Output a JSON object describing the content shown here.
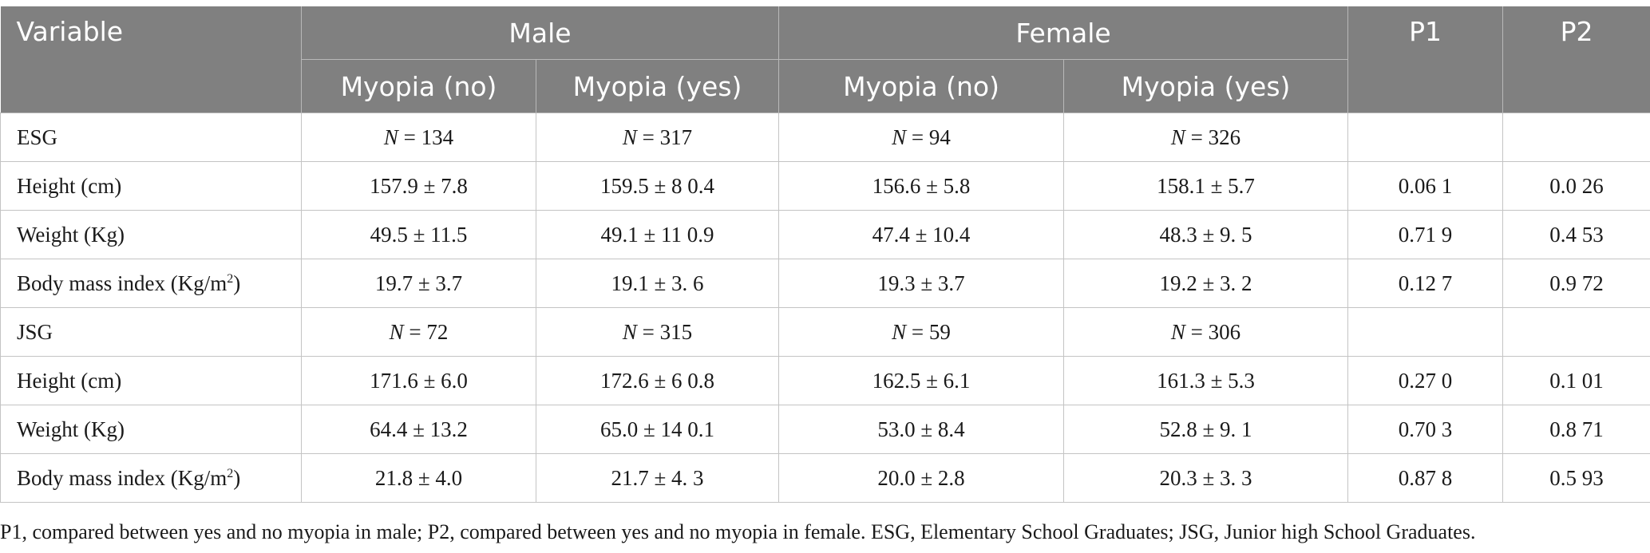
{
  "header": {
    "variable": "Variable",
    "male": "Male",
    "female": "Female",
    "p1": "P1",
    "p2": "P2",
    "sub": [
      "Myopia (no)",
      "Myopia (yes)",
      "Myopia (no)",
      "Myopia (yes)"
    ]
  },
  "rows": [
    {
      "label": "ESG",
      "n": [
        "134",
        "317",
        "94",
        "326"
      ]
    },
    {
      "label": "Height (cm)",
      "cells": [
        "157.9 ± 7.8",
        "159.5 ± 8 0.4",
        "156.6 ± 5.8",
        "158.1 ± 5.7",
        "0.06 1",
        "0.0 26"
      ]
    },
    {
      "label": "Weight (Kg)",
      "cells": [
        "49.5 ± 11.5",
        "49.1 ± 11 0.9",
        "47.4 ± 10.4",
        "48.3 ± 9. 5",
        "0.71 9",
        "0.4 53"
      ]
    },
    {
      "label": "Body mass index (Kg/m",
      "sup": "2",
      "close": ")",
      "cells": [
        "19.7 ± 3.7",
        "19.1 ± 3. 6",
        "19.3 ± 3.7",
        "19.2 ± 3. 2",
        "0.12 7",
        "0.9 72"
      ]
    },
    {
      "label": "JSG",
      "n": [
        "72",
        "315",
        "59",
        "306"
      ]
    },
    {
      "label": "Height (cm)",
      "cells": [
        "171.6 ± 6.0",
        "172.6 ± 6 0.8",
        "162.5 ± 6.1",
        "161.3 ± 5.3",
        "0.27 0",
        "0.1 01"
      ]
    },
    {
      "label": "Weight (Kg)",
      "cells": [
        "64.4 ± 13.2",
        "65.0 ± 14 0.1",
        "53.0 ± 8.4",
        "52.8 ± 9. 1",
        "0.70 3",
        "0.8 71"
      ]
    },
    {
      "label": "Body mass index (Kg/m",
      "sup": "2",
      "close": ")",
      "cells": [
        "21.8 ± 4.0",
        "21.7 ± 4. 3",
        "20.0 ± 2.8",
        "20.3 ± 3. 3",
        "0.87 8",
        "0.5 93"
      ]
    }
  ],
  "n_prefix": "N",
  "n_eq": " = ",
  "footnote": "P1, compared between yes and no myopia in male; P2, compared between yes and no myopia in female. ESG, Elementary School Graduates; JSG, Junior high School Graduates."
}
